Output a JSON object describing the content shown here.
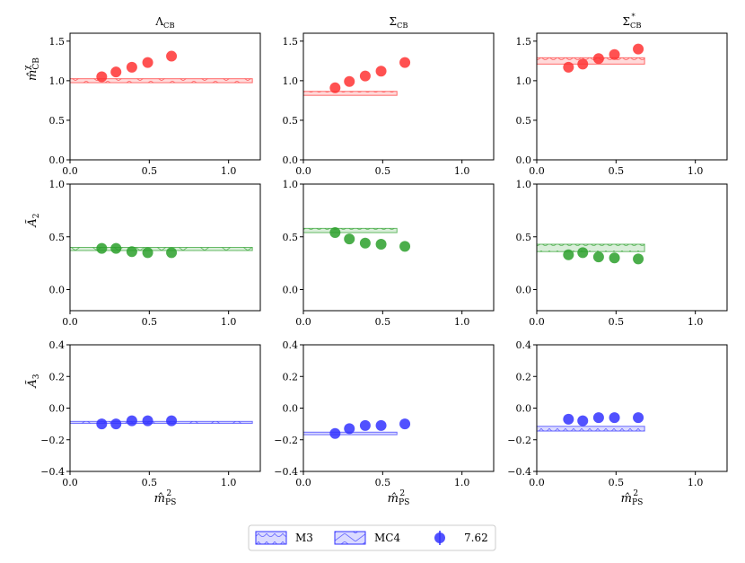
{
  "chart_data": {
    "type": "scatter",
    "layout": "3x3 grid",
    "columns": [
      {
        "title_main": "Λ",
        "title_sub": "CB",
        "title_sup": ""
      },
      {
        "title_main": "Σ",
        "title_sub": "CB",
        "title_sup": ""
      },
      {
        "title_main": "Σ",
        "title_sub": "CB",
        "title_sup": "*"
      }
    ],
    "rows": [
      {
        "ylabel_main": "m̂",
        "ylabel_sub": "CB",
        "ylabel_sup": "χ",
        "color": "#ff3333",
        "ylim": [
          0.0,
          1.6
        ],
        "yticks": [
          "0.0",
          "0.5",
          "1.0",
          "1.5"
        ]
      },
      {
        "ylabel_main": "Ã",
        "ylabel_sub": "2",
        "ylabel_sup": "",
        "color": "#2ca02c",
        "ylim": [
          -0.2,
          1.0
        ],
        "yticks": [
          "0.0",
          "0.5",
          "1.0"
        ]
      },
      {
        "ylabel_main": "Ã",
        "ylabel_sub": "3",
        "ylabel_sup": "",
        "color": "#3333ff",
        "ylim": [
          -0.4,
          0.4
        ],
        "yticks": [
          "−0.4",
          "−0.2",
          "0.0",
          "0.2",
          "0.4"
        ]
      }
    ],
    "xlim": [
      0.0,
      1.2
    ],
    "xticks": [
      "0.0",
      "0.5",
      "1.0"
    ],
    "xlabel_main": "m̂",
    "xlabel_sub": "PS",
    "xlabel_sup": "2",
    "x": [
      0.2,
      0.29,
      0.39,
      0.49,
      0.64
    ],
    "panels": [
      [
        {
          "points": [
            1.05,
            1.11,
            1.17,
            1.23,
            1.31
          ],
          "band": {
            "center": 1.0,
            "half_width": 0.025,
            "x_end": 1.15,
            "hatch": "MC4"
          }
        },
        {
          "points": [
            0.91,
            0.99,
            1.06,
            1.12,
            1.23
          ],
          "band": {
            "center": 0.84,
            "half_width": 0.025,
            "x_end": 0.59,
            "hatch": "M3"
          }
        },
        {
          "points": [
            1.17,
            1.21,
            1.28,
            1.33,
            1.4
          ],
          "band": {
            "center": 1.25,
            "half_width": 0.04,
            "x_end": 0.68,
            "hatch": "M3"
          }
        }
      ],
      [
        {
          "points": [
            0.39,
            0.39,
            0.36,
            0.35,
            0.35
          ],
          "band": {
            "center": 0.385,
            "half_width": 0.015,
            "x_end": 1.15,
            "hatch": "MC4"
          }
        },
        {
          "points": [
            0.54,
            0.48,
            0.44,
            0.43,
            0.41
          ],
          "band": {
            "center": 0.56,
            "half_width": 0.02,
            "x_end": 0.59,
            "hatch": "M3"
          }
        },
        {
          "points": [
            0.33,
            0.35,
            0.31,
            0.3,
            0.29
          ],
          "band": {
            "center": 0.395,
            "half_width": 0.035,
            "x_end": 0.68,
            "hatch": "M3"
          }
        }
      ],
      [
        {
          "points": [
            -0.1,
            -0.1,
            -0.08,
            -0.08,
            -0.08
          ],
          "band": {
            "center": -0.09,
            "half_width": 0.006,
            "x_end": 1.15,
            "hatch": "MC4"
          }
        },
        {
          "points": [
            -0.16,
            -0.13,
            -0.11,
            -0.11,
            -0.1
          ],
          "band": {
            "center": -0.16,
            "half_width": 0.008,
            "x_end": 0.59,
            "hatch": "M3"
          }
        },
        {
          "points": [
            -0.07,
            -0.08,
            -0.06,
            -0.06,
            -0.06
          ],
          "band": {
            "center": -0.13,
            "half_width": 0.015,
            "x_end": 0.68,
            "hatch": "M3"
          }
        }
      ]
    ],
    "legend": {
      "placement": "bottom-center",
      "entries": [
        {
          "label": "M3",
          "kind": "M3"
        },
        {
          "label": "MC4",
          "kind": "MC4"
        },
        {
          "label": "7.62",
          "kind": "marker"
        }
      ],
      "color": "#3333ff"
    }
  }
}
